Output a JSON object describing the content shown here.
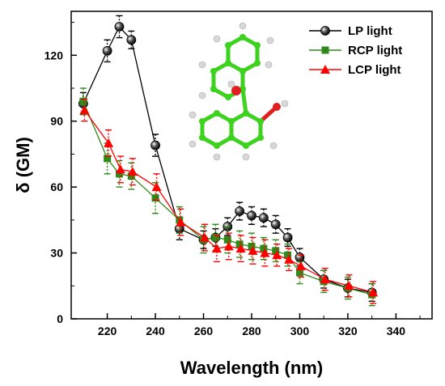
{
  "chart_data": {
    "type": "line",
    "title": "",
    "xlabel": "Wavelength (nm)",
    "ylabel": "δ (GM)",
    "xlim": [
      205,
      355
    ],
    "ylim": [
      0,
      140
    ],
    "xticks": [
      220,
      240,
      260,
      280,
      300,
      320,
      340
    ],
    "yticks": [
      0,
      30,
      60,
      90,
      120
    ],
    "grid": false,
    "legend_position": "top-right",
    "series": [
      {
        "name": "LP light",
        "color": "#000000",
        "marker": "sphere",
        "x": [
          210,
          220,
          225,
          230,
          240,
          250,
          260,
          265,
          270,
          275,
          280,
          285,
          290,
          295,
          300,
          310,
          320,
          330
        ],
        "y": [
          98,
          122,
          133,
          127,
          79,
          41,
          36,
          37,
          42,
          49,
          47,
          46,
          43,
          37,
          28,
          18,
          14,
          12
        ],
        "err": [
          5,
          5,
          5,
          4,
          5,
          5,
          4,
          4,
          4,
          4,
          4,
          4,
          4,
          4,
          4,
          4,
          4,
          4
        ]
      },
      {
        "name": "RCP light",
        "color": "#2e8b1a",
        "marker": "square",
        "x": [
          210,
          220,
          225,
          230,
          240,
          250,
          260,
          265,
          270,
          275,
          280,
          285,
          290,
          295,
          300,
          310,
          320,
          330
        ],
        "y": [
          99,
          73,
          66,
          65,
          55,
          45,
          36,
          37,
          36,
          34,
          33,
          32,
          31,
          29,
          21,
          17,
          14,
          11
        ],
        "err": [
          6,
          7,
          6,
          6,
          7,
          6,
          6,
          6,
          6,
          6,
          6,
          5,
          5,
          5,
          5,
          5,
          5,
          5
        ]
      },
      {
        "name": "LCP light",
        "color": "#ff0000",
        "marker": "triangle",
        "x": [
          210,
          220,
          225,
          230,
          240,
          250,
          260,
          265,
          270,
          275,
          280,
          285,
          290,
          295,
          300,
          310,
          320,
          330
        ],
        "y": [
          95,
          80,
          68,
          67,
          60,
          44,
          37,
          32,
          33,
          32,
          31,
          30,
          29,
          27,
          24,
          18,
          15,
          12
        ],
        "err": [
          5,
          6,
          6,
          6,
          6,
          6,
          6,
          6,
          6,
          6,
          6,
          6,
          5,
          5,
          5,
          5,
          5,
          5
        ]
      }
    ]
  },
  "molecule": {
    "carbon_color": "#3cd21e",
    "oxygen_color": "#e02020",
    "hydrogen_color": "#d8d8d8"
  }
}
